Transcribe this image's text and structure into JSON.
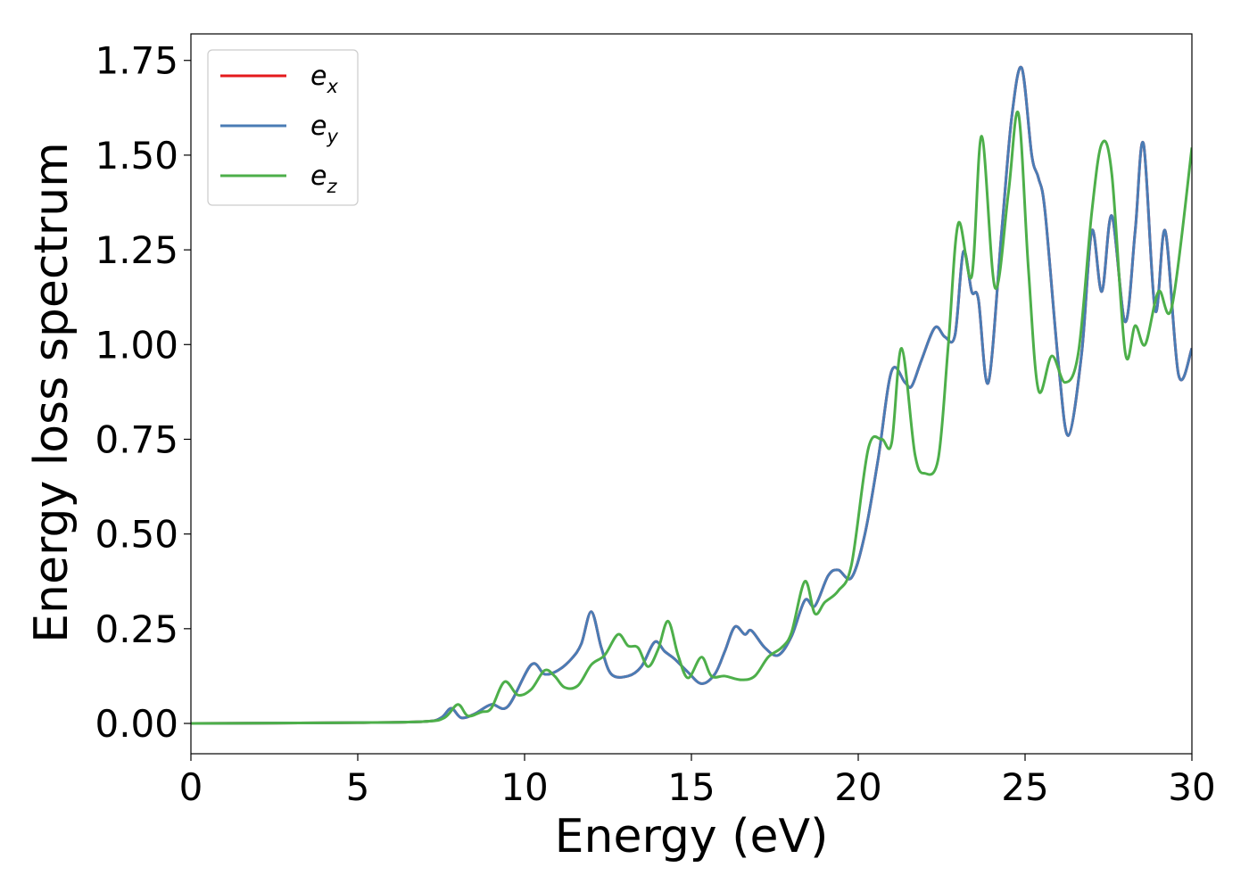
{
  "chart_data": {
    "type": "line",
    "title": "",
    "xlabel": "Energy (eV)",
    "ylabel": "Energy loss spectrum",
    "xlim": [
      0,
      30
    ],
    "ylim": [
      -0.08,
      1.82
    ],
    "x_ticks": [
      "0",
      "5",
      "10",
      "15",
      "20",
      "25",
      "30"
    ],
    "y_ticks": [
      "0.00",
      "0.25",
      "0.50",
      "0.75",
      "1.00",
      "1.25",
      "1.50",
      "1.75"
    ],
    "grid": false,
    "legend_position": "top-left",
    "series": [
      {
        "name": "e_x",
        "legend_base": "e",
        "legend_sub": "x",
        "color": "#e41a1c",
        "points": [
          [
            0,
            0
          ],
          [
            5,
            0.002
          ],
          [
            7,
            0.005
          ],
          [
            7.5,
            0.015
          ],
          [
            7.8,
            0.04
          ],
          [
            8.1,
            0.015
          ],
          [
            8.5,
            0.025
          ],
          [
            9,
            0.05
          ],
          [
            9.5,
            0.045
          ],
          [
            10.2,
            0.155
          ],
          [
            10.6,
            0.13
          ],
          [
            11,
            0.14
          ],
          [
            11.4,
            0.17
          ],
          [
            11.7,
            0.21
          ],
          [
            12,
            0.295
          ],
          [
            12.3,
            0.2
          ],
          [
            12.6,
            0.13
          ],
          [
            13.1,
            0.125
          ],
          [
            13.5,
            0.15
          ],
          [
            13.9,
            0.215
          ],
          [
            14.2,
            0.19
          ],
          [
            14.5,
            0.17
          ],
          [
            14.9,
            0.135
          ],
          [
            15.3,
            0.105
          ],
          [
            15.7,
            0.13
          ],
          [
            16,
            0.19
          ],
          [
            16.3,
            0.255
          ],
          [
            16.6,
            0.235
          ],
          [
            16.8,
            0.245
          ],
          [
            17.2,
            0.2
          ],
          [
            17.6,
            0.18
          ],
          [
            18,
            0.23
          ],
          [
            18.4,
            0.325
          ],
          [
            18.7,
            0.31
          ],
          [
            19.1,
            0.39
          ],
          [
            19.4,
            0.405
          ],
          [
            19.8,
            0.385
          ],
          [
            20.2,
            0.5
          ],
          [
            20.6,
            0.7
          ],
          [
            21,
            0.93
          ],
          [
            21.4,
            0.9
          ],
          [
            21.6,
            0.89
          ],
          [
            21.9,
            0.96
          ],
          [
            22.3,
            1.045
          ],
          [
            22.6,
            1.02
          ],
          [
            22.9,
            1.025
          ],
          [
            23.15,
            1.245
          ],
          [
            23.4,
            1.14
          ],
          [
            23.6,
            1.12
          ],
          [
            23.9,
            0.9
          ],
          [
            24.3,
            1.3
          ],
          [
            24.6,
            1.6
          ],
          [
            24.9,
            1.73
          ],
          [
            25.2,
            1.5
          ],
          [
            25.4,
            1.44
          ],
          [
            25.6,
            1.35
          ],
          [
            26,
            0.95
          ],
          [
            26.3,
            0.76
          ],
          [
            26.7,
            0.98
          ],
          [
            27,
            1.3
          ],
          [
            27.3,
            1.14
          ],
          [
            27.6,
            1.34
          ],
          [
            28,
            1.06
          ],
          [
            28.3,
            1.3
          ],
          [
            28.55,
            1.53
          ],
          [
            28.9,
            1.09
          ],
          [
            29.2,
            1.3
          ],
          [
            29.6,
            0.92
          ],
          [
            30,
            0.99
          ]
        ]
      },
      {
        "name": "e_y",
        "legend_base": "e",
        "legend_sub": "y",
        "color": "#4a7cb5",
        "points": [
          [
            0,
            0
          ],
          [
            5,
            0.002
          ],
          [
            7,
            0.005
          ],
          [
            7.5,
            0.015
          ],
          [
            7.8,
            0.04
          ],
          [
            8.1,
            0.015
          ],
          [
            8.5,
            0.025
          ],
          [
            9,
            0.05
          ],
          [
            9.5,
            0.045
          ],
          [
            10.2,
            0.155
          ],
          [
            10.6,
            0.13
          ],
          [
            11,
            0.14
          ],
          [
            11.4,
            0.17
          ],
          [
            11.7,
            0.21
          ],
          [
            12,
            0.295
          ],
          [
            12.3,
            0.2
          ],
          [
            12.6,
            0.13
          ],
          [
            13.1,
            0.125
          ],
          [
            13.5,
            0.15
          ],
          [
            13.9,
            0.215
          ],
          [
            14.2,
            0.19
          ],
          [
            14.5,
            0.17
          ],
          [
            14.9,
            0.135
          ],
          [
            15.3,
            0.105
          ],
          [
            15.7,
            0.13
          ],
          [
            16,
            0.19
          ],
          [
            16.3,
            0.255
          ],
          [
            16.6,
            0.235
          ],
          [
            16.8,
            0.245
          ],
          [
            17.2,
            0.2
          ],
          [
            17.6,
            0.18
          ],
          [
            18,
            0.23
          ],
          [
            18.4,
            0.325
          ],
          [
            18.7,
            0.31
          ],
          [
            19.1,
            0.39
          ],
          [
            19.4,
            0.405
          ],
          [
            19.8,
            0.385
          ],
          [
            20.2,
            0.5
          ],
          [
            20.6,
            0.7
          ],
          [
            21,
            0.93
          ],
          [
            21.4,
            0.9
          ],
          [
            21.6,
            0.89
          ],
          [
            21.9,
            0.96
          ],
          [
            22.3,
            1.045
          ],
          [
            22.6,
            1.02
          ],
          [
            22.9,
            1.025
          ],
          [
            23.15,
            1.245
          ],
          [
            23.4,
            1.14
          ],
          [
            23.6,
            1.12
          ],
          [
            23.9,
            0.9
          ],
          [
            24.3,
            1.3
          ],
          [
            24.6,
            1.6
          ],
          [
            24.9,
            1.73
          ],
          [
            25.2,
            1.5
          ],
          [
            25.4,
            1.44
          ],
          [
            25.6,
            1.35
          ],
          [
            26,
            0.95
          ],
          [
            26.3,
            0.76
          ],
          [
            26.7,
            0.98
          ],
          [
            27,
            1.3
          ],
          [
            27.3,
            1.14
          ],
          [
            27.6,
            1.34
          ],
          [
            28,
            1.06
          ],
          [
            28.3,
            1.3
          ],
          [
            28.55,
            1.53
          ],
          [
            28.9,
            1.09
          ],
          [
            29.2,
            1.3
          ],
          [
            29.6,
            0.92
          ],
          [
            30,
            0.99
          ]
        ]
      },
      {
        "name": "e_z",
        "legend_base": "e",
        "legend_sub": "z",
        "color": "#4daf4a",
        "points": [
          [
            0,
            0
          ],
          [
            5,
            0.002
          ],
          [
            7,
            0.005
          ],
          [
            7.6,
            0.015
          ],
          [
            8,
            0.05
          ],
          [
            8.3,
            0.02
          ],
          [
            8.7,
            0.03
          ],
          [
            9,
            0.04
          ],
          [
            9.4,
            0.11
          ],
          [
            9.8,
            0.075
          ],
          [
            10.2,
            0.09
          ],
          [
            10.6,
            0.14
          ],
          [
            10.9,
            0.125
          ],
          [
            11.2,
            0.095
          ],
          [
            11.6,
            0.1
          ],
          [
            12,
            0.155
          ],
          [
            12.4,
            0.18
          ],
          [
            12.8,
            0.235
          ],
          [
            13.1,
            0.205
          ],
          [
            13.4,
            0.2
          ],
          [
            13.7,
            0.15
          ],
          [
            14,
            0.195
          ],
          [
            14.3,
            0.27
          ],
          [
            14.6,
            0.18
          ],
          [
            14.9,
            0.12
          ],
          [
            15.3,
            0.175
          ],
          [
            15.6,
            0.125
          ],
          [
            16,
            0.125
          ],
          [
            16.5,
            0.115
          ],
          [
            16.9,
            0.125
          ],
          [
            17.3,
            0.175
          ],
          [
            17.7,
            0.2
          ],
          [
            18,
            0.24
          ],
          [
            18.4,
            0.375
          ],
          [
            18.7,
            0.29
          ],
          [
            19,
            0.32
          ],
          [
            19.4,
            0.35
          ],
          [
            19.8,
            0.42
          ],
          [
            20.3,
            0.725
          ],
          [
            20.7,
            0.75
          ],
          [
            21,
            0.74
          ],
          [
            21.3,
            0.99
          ],
          [
            21.7,
            0.71
          ],
          [
            22,
            0.66
          ],
          [
            22.4,
            0.7
          ],
          [
            22.7,
            1.0
          ],
          [
            23,
            1.32
          ],
          [
            23.4,
            1.18
          ],
          [
            23.7,
            1.55
          ],
          [
            24.1,
            1.15
          ],
          [
            24.5,
            1.4
          ],
          [
            24.8,
            1.61
          ],
          [
            25.1,
            1.2
          ],
          [
            25.4,
            0.88
          ],
          [
            25.8,
            0.97
          ],
          [
            26.2,
            0.9
          ],
          [
            26.6,
            0.98
          ],
          [
            27,
            1.35
          ],
          [
            27.3,
            1.53
          ],
          [
            27.6,
            1.45
          ],
          [
            28,
            0.98
          ],
          [
            28.3,
            1.05
          ],
          [
            28.6,
            1.0
          ],
          [
            29,
            1.14
          ],
          [
            29.4,
            1.1
          ],
          [
            30,
            1.52
          ]
        ]
      }
    ]
  }
}
